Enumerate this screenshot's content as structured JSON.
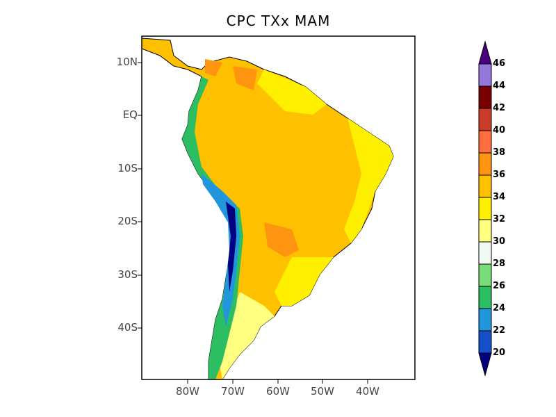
{
  "title": "CPC TXx MAM",
  "lat_ticks": [
    "10N",
    "EQ",
    "10S",
    "20S",
    "30S",
    "40S"
  ],
  "lon_ticks": [
    "80W",
    "70W",
    "60W",
    "50W",
    "40W"
  ],
  "colorbar": {
    "labels": [
      "20",
      "22",
      "24",
      "26",
      "28",
      "30",
      "32",
      "34",
      "36",
      "38",
      "40",
      "42",
      "44",
      "46"
    ],
    "colors": [
      "#000080",
      "#1650c8",
      "#2196dc",
      "#2dbe64",
      "#78dc78",
      "#f0faf0",
      "#ffff80",
      "#fff000",
      "#ffc000",
      "#ff9410",
      "#ff6e3c",
      "#c83c28",
      "#780000",
      "#9678dc",
      "#4b0082"
    ]
  }
}
